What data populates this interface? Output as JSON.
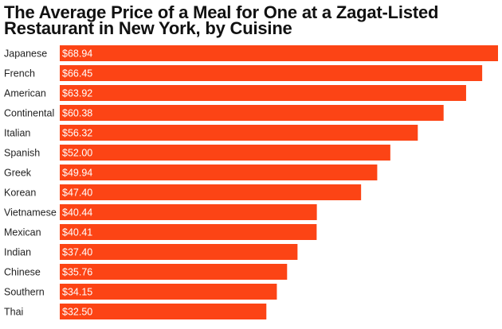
{
  "chart_data": {
    "type": "bar",
    "orientation": "horizontal",
    "title_lines": [
      "The Average Price of a Meal for One at a Zagat-Listed",
      "Restaurant in New York, by Cuisine"
    ],
    "categories": [
      "Japanese",
      "French",
      "American",
      "Continental",
      "Italian",
      "Spanish",
      "Greek",
      "Korean",
      "Vietnamese",
      "Mexican",
      "Indian",
      "Chinese",
      "Southern",
      "Thai"
    ],
    "values": [
      68.94,
      66.45,
      63.92,
      60.38,
      56.32,
      52.0,
      49.94,
      47.4,
      40.44,
      40.41,
      37.4,
      35.76,
      34.15,
      32.5
    ],
    "value_labels": [
      "$68.94",
      "$66.45",
      "$63.92",
      "$60.38",
      "$56.32",
      "$52.00",
      "$49.94",
      "$47.40",
      "$40.44",
      "$40.41",
      "$37.40",
      "$35.76",
      "$34.15",
      "$32.50"
    ],
    "xlim": [
      0,
      68.94
    ],
    "grid": false,
    "legend": "none",
    "bar_color": "#fc4415",
    "label_color": "#ffffff"
  }
}
